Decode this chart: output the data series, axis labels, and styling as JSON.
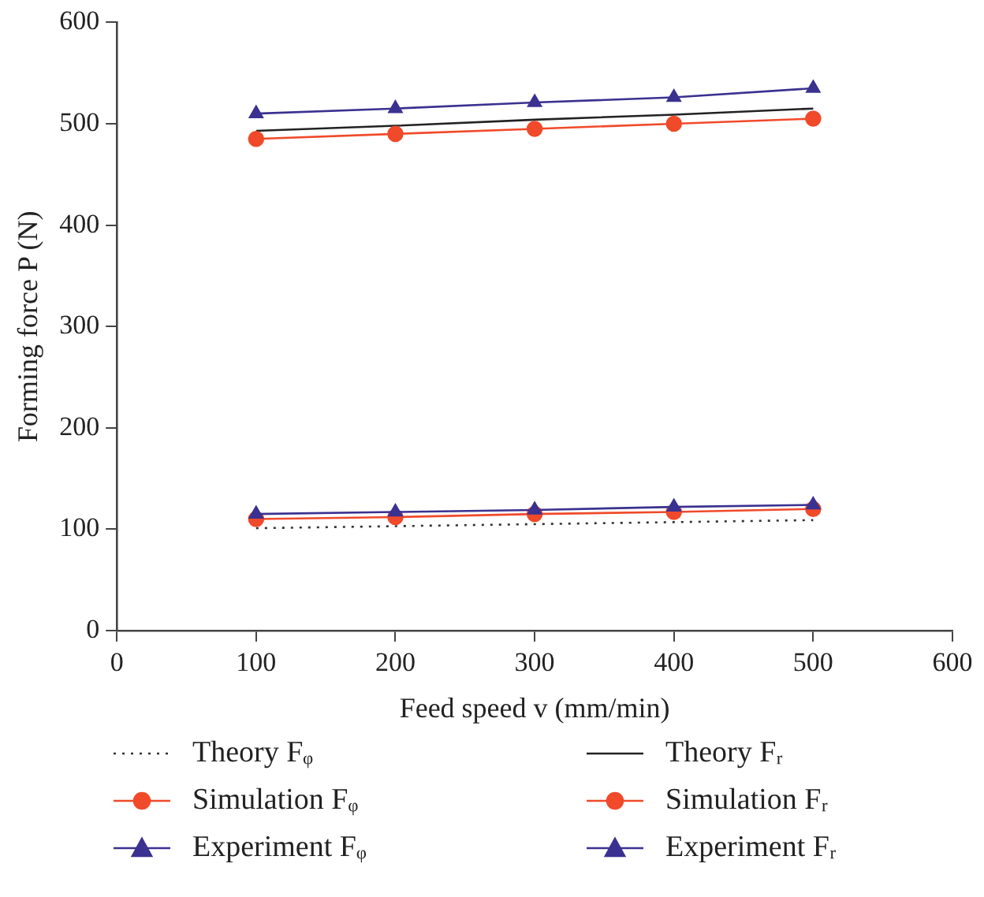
{
  "chart_data": {
    "type": "line",
    "xlabel": "Feed speed v (mm/min)",
    "ylabel": "Forming force P (N)",
    "x": [
      100,
      200,
      300,
      400,
      500
    ],
    "series": [
      {
        "name": "Theory Fᵩ",
        "color": "#333333",
        "values": [
          101,
          103,
          105,
          107,
          109
        ],
        "marker": "none",
        "line_style": "dotted"
      },
      {
        "name": "Simulation Fᵩ",
        "color": "#f04a2a",
        "values": [
          110,
          112,
          115,
          117,
          120
        ],
        "marker": "circle",
        "line_style": "solid"
      },
      {
        "name": "Experiment Fᵩ",
        "color": "#3a3190",
        "values": [
          115,
          117,
          119,
          122,
          124
        ],
        "marker": "triangle",
        "line_style": "solid"
      },
      {
        "name": "Theory Fᵣ",
        "color": "#222222",
        "values": [
          493,
          498,
          504,
          509,
          515
        ],
        "marker": "none",
        "line_style": "solid"
      },
      {
        "name": "Simulation Fᵣ",
        "color": "#f04a2a",
        "values": [
          485,
          490,
          495,
          500,
          505
        ],
        "marker": "circle",
        "line_style": "solid"
      },
      {
        "name": "Experiment Fᵣ",
        "color": "#3a3190",
        "values": [
          510,
          515,
          521,
          526,
          535
        ],
        "marker": "triangle",
        "line_style": "solid"
      }
    ],
    "xlim": [
      0,
      600
    ],
    "xticks": [
      0,
      100,
      200,
      300,
      400,
      500,
      600
    ],
    "ylim": [
      0,
      600
    ],
    "yticks": [
      0,
      100,
      200,
      300,
      400,
      500,
      600
    ],
    "grid": false,
    "legend": "bottom"
  }
}
